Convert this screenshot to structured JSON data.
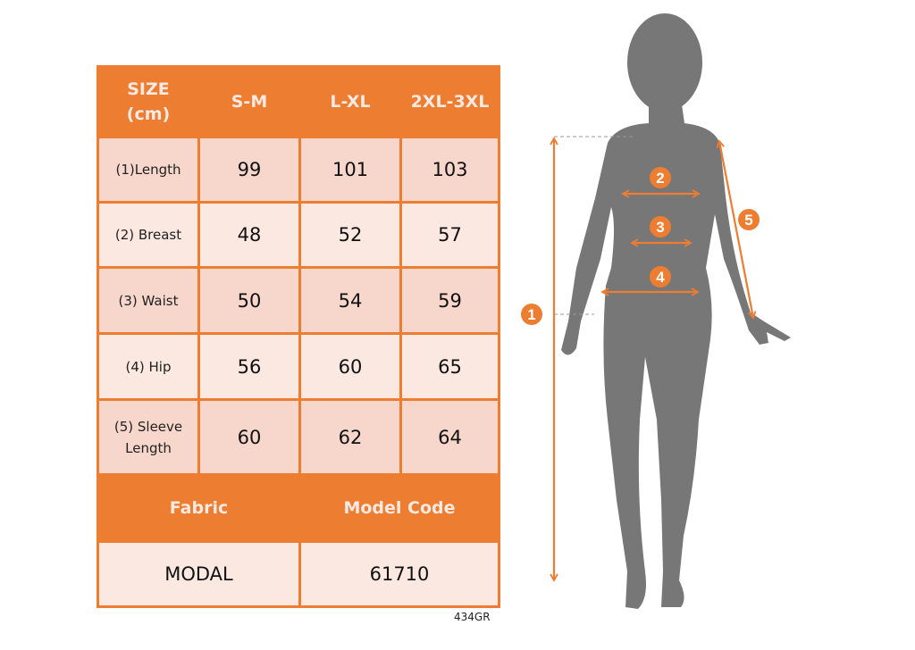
{
  "header": {
    "size_label": "SIZE (cm)",
    "sizes": [
      "S-M",
      "L-XL",
      "2XL-3XL"
    ]
  },
  "rows": [
    {
      "label": "(1)Length",
      "values": [
        "99",
        "101",
        "103"
      ]
    },
    {
      "label": "(2) Breast",
      "values": [
        "48",
        "52",
        "57"
      ]
    },
    {
      "label": "(3) Waist",
      "values": [
        "50",
        "54",
        "59"
      ]
    },
    {
      "label": "(4) Hip",
      "values": [
        "56",
        "60",
        "65"
      ]
    },
    {
      "label": "(5) Sleeve Length",
      "values": [
        "60",
        "62",
        "64"
      ]
    }
  ],
  "footer": {
    "fabric_label": "Fabric",
    "model_code_label": "Model Code",
    "fabric": "MODAL",
    "model_code": "61710"
  },
  "product_code": "434GR",
  "figure": {
    "markers": [
      "1",
      "2",
      "3",
      "4",
      "5"
    ],
    "silhouette": "woman-silhouette"
  },
  "colors": {
    "accent": "#ED7D31",
    "cell_dark": "#F7D6CB",
    "cell_light": "#FBE8E1",
    "silhouette": "#777777"
  }
}
